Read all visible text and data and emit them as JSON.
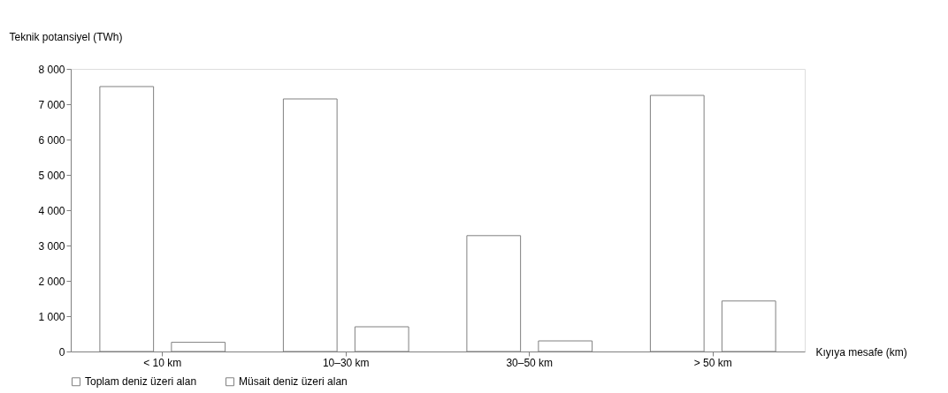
{
  "chart_data": {
    "type": "bar",
    "xlabel": "Kıyıya mesafe (km)",
    "ylabel": "Teknik potansiyel (TWh)",
    "categories": [
      "< 10 km",
      "10–30 km",
      "30–50 km",
      "> 50 km"
    ],
    "series": [
      {
        "name": "Toplam deniz üzeri alan",
        "color": "#ffffff",
        "values": [
          7500,
          7150,
          3280,
          7250
        ]
      },
      {
        "name": "Müsait deniz üzeri alan",
        "color": "#ffffff",
        "values": [
          260,
          700,
          300,
          1430
        ]
      }
    ],
    "ylim": [
      0,
      8000
    ],
    "yticks": [
      {
        "value": 0,
        "label": "0"
      },
      {
        "value": 1000,
        "label": "1 000"
      },
      {
        "value": 2000,
        "label": "2 000"
      },
      {
        "value": 3000,
        "label": "3 000"
      },
      {
        "value": 4000,
        "label": "4 000"
      },
      {
        "value": 5000,
        "label": "5 000"
      },
      {
        "value": 6000,
        "label": "6 000"
      },
      {
        "value": 7000,
        "label": "7 000"
      },
      {
        "value": 8000,
        "label": "8 000"
      }
    ],
    "grid": false,
    "legend": "bottom left"
  }
}
